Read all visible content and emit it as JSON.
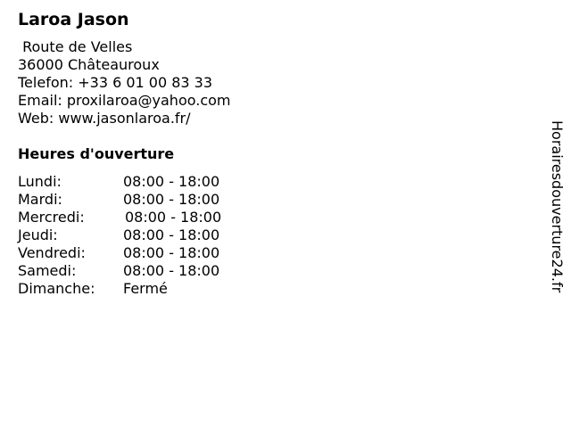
{
  "business": {
    "name": "Laroa Jason",
    "street": " Route de Velles",
    "city": "36000 Châteauroux",
    "phone": "Telefon: +33 6 01 00 83 33",
    "email": "Email: proxilaroa@yahoo.com",
    "web": "Web: www.jasonlaroa.fr/"
  },
  "hours": {
    "heading": "Heures d'ouverture",
    "days": [
      {
        "day": "Lundi:",
        "time": "08:00 - 18:00"
      },
      {
        "day": "Mardi:",
        "time": "08:00 - 18:00"
      },
      {
        "day": "Mercredi:",
        "time": "08:00 - 18:00"
      },
      {
        "day": "Jeudi:",
        "time": "08:00 - 18:00"
      },
      {
        "day": "Vendredi:",
        "time": "08:00 - 18:00"
      },
      {
        "day": "Samedi:",
        "time": "08:00 - 18:00"
      },
      {
        "day": "Dimanche:",
        "time": "Fermé"
      }
    ]
  },
  "watermark": "Horairesdouverture24.fr"
}
